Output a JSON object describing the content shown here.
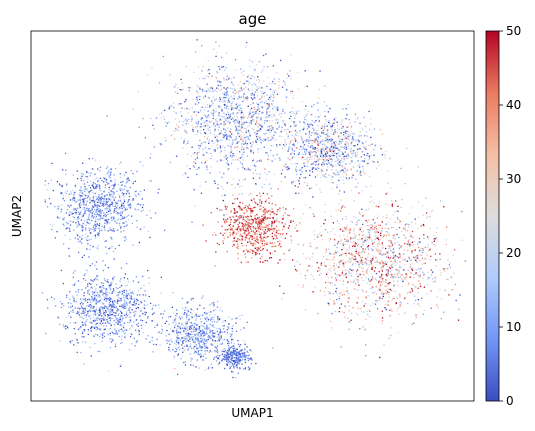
{
  "chart_data": {
    "type": "scatter",
    "title": "age",
    "xlabel": "UMAP1",
    "ylabel": "UMAP2",
    "x_ticks": [],
    "y_ticks": [],
    "colorbar": {
      "label": "",
      "range": [
        0,
        50
      ],
      "ticks": [
        0,
        10,
        20,
        30,
        40,
        50
      ],
      "colormap": "coolwarm",
      "colormap_stops": [
        "#3b4cc0",
        "#7396f5",
        "#b0cbfc",
        "#dddddd",
        "#f6bfa6",
        "#ea7b60",
        "#b40426"
      ]
    },
    "grid": false,
    "legend": "none",
    "point_size": "very small",
    "regions": [
      {
        "name": "upper lobe",
        "cx": 0.46,
        "cy": 0.76,
        "spread": 0.14,
        "age_mean": 14,
        "age_sd": 12
      },
      {
        "name": "upper-right lobe",
        "cx": 0.67,
        "cy": 0.68,
        "spread": 0.09,
        "age_mean": 16,
        "age_sd": 13
      },
      {
        "name": "left lobe",
        "cx": 0.15,
        "cy": 0.53,
        "spread": 0.09,
        "age_mean": 8,
        "age_sd": 7
      },
      {
        "name": "lower-left lobe",
        "cx": 0.17,
        "cy": 0.25,
        "spread": 0.09,
        "age_mean": 8,
        "age_sd": 7
      },
      {
        "name": "lower-middle lobe",
        "cx": 0.38,
        "cy": 0.18,
        "spread": 0.07,
        "age_mean": 10,
        "age_sd": 8
      },
      {
        "name": "right mass",
        "cx": 0.78,
        "cy": 0.38,
        "spread": 0.14,
        "age_mean": 30,
        "age_sd": 14
      },
      {
        "name": "central red cluster",
        "cx": 0.5,
        "cy": 0.47,
        "spread": 0.07,
        "age_mean": 44,
        "age_sd": 5
      },
      {
        "name": "lower tail",
        "cx": 0.46,
        "cy": 0.12,
        "spread": 0.03,
        "age_mean": 5,
        "age_sd": 4
      }
    ]
  }
}
